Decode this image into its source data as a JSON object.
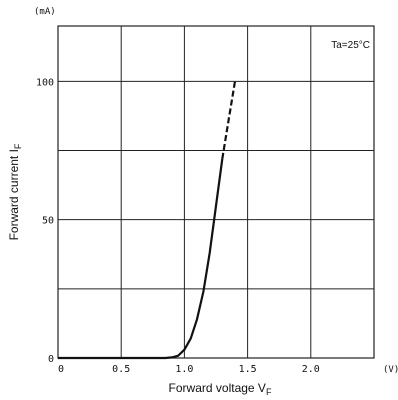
{
  "chart_data": {
    "type": "line",
    "title": "",
    "xlabel": "Forward voltage V",
    "xlabel_sub": "F",
    "ylabel": "Forward current I",
    "ylabel_sub": "F",
    "x_unit": "(V)",
    "y_unit": "(mA)",
    "annotation": "Ta=25°C",
    "xlim": [
      0,
      2.5
    ],
    "ylim": [
      0,
      120
    ],
    "x_ticks": [
      0,
      0.5,
      1.0,
      1.5,
      2.0
    ],
    "x_tick_labels": [
      "0",
      "0.5",
      "1.0",
      "1.5",
      "2.0"
    ],
    "y_ticks": [
      0,
      50,
      100
    ],
    "y_tick_labels": [
      "0",
      "50",
      "100"
    ],
    "grid": true,
    "series": [
      {
        "style": "solid",
        "points": [
          [
            0,
            0
          ],
          [
            0.85,
            0
          ],
          [
            0.9,
            0.2
          ],
          [
            0.95,
            0.8
          ],
          [
            1.0,
            3
          ],
          [
            1.05,
            7
          ],
          [
            1.1,
            14
          ],
          [
            1.15,
            24
          ],
          [
            1.2,
            38
          ],
          [
            1.25,
            55
          ],
          [
            1.3,
            72
          ]
        ]
      },
      {
        "style": "dashed",
        "points": [
          [
            1.3,
            72
          ],
          [
            1.35,
            86
          ],
          [
            1.4,
            100
          ]
        ]
      }
    ]
  }
}
